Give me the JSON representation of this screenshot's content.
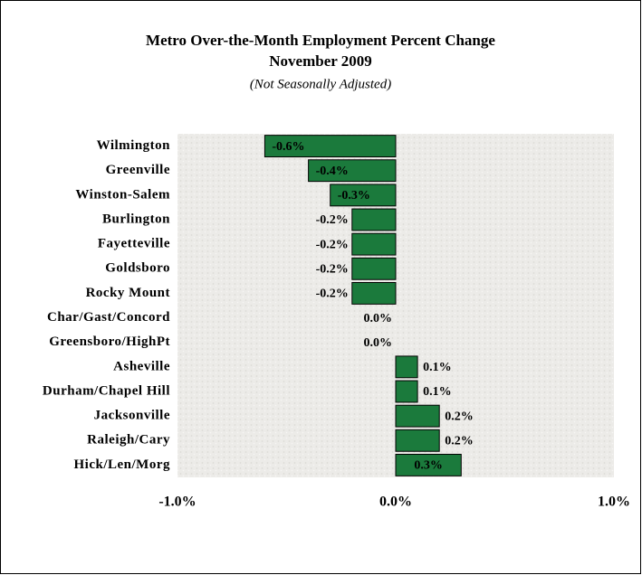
{
  "chart_data": {
    "type": "barh",
    "title": "Metro Over-the-Month Employment Percent Change",
    "subtitle": "November 2009",
    "note": "(Not Seasonally Adjusted)",
    "categories": [
      "Wilmington",
      "Greenville",
      "Winston-Salem",
      "Burlington",
      "Fayetteville",
      "Goldsboro",
      "Rocky Mount",
      "Char/Gast/Concord",
      "Greensboro/HighPt",
      "Asheville",
      "Durham/Chapel Hill",
      "Jacksonville",
      "Raleigh/Cary",
      "Hick/Len/Morg"
    ],
    "values": [
      -0.6,
      -0.4,
      -0.3,
      -0.2,
      -0.2,
      -0.2,
      -0.2,
      0.0,
      0.0,
      0.1,
      0.1,
      0.2,
      0.2,
      0.3
    ],
    "value_labels": [
      "-0.6%",
      "-0.4%",
      "-0.3%",
      "-0.2%",
      "-0.2%",
      "-0.2%",
      "-0.2%",
      "0.0%",
      "0.0%",
      "0.1%",
      "0.1%",
      "0.2%",
      "0.2%",
      "0.3%"
    ],
    "color": "#1b7a3c",
    "xlim": [
      -1.0,
      1.0
    ],
    "xticks": [
      {
        "value": -1.0,
        "label": "-1.0%"
      },
      {
        "value": 0.0,
        "label": "0.0%"
      },
      {
        "value": 1.0,
        "label": "1.0%"
      }
    ]
  }
}
